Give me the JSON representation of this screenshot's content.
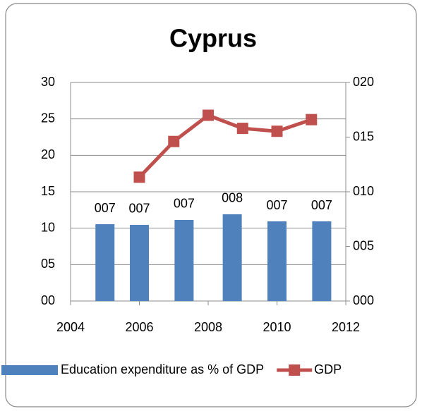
{
  "chart_data": {
    "type": "combo",
    "title": "Cyprus",
    "xlim": [
      2004,
      2012
    ],
    "xticks": [
      2004,
      2006,
      2008,
      2010,
      2012
    ],
    "ylim": [
      0,
      30
    ],
    "yticks": [
      {
        "value": 0,
        "label": "00"
      },
      {
        "value": 5,
        "label": "05"
      },
      10,
      15,
      20,
      25,
      30
    ],
    "y2lim": [
      0,
      20
    ],
    "y2ticks": [
      {
        "value": 0,
        "label": "000"
      },
      {
        "value": 5,
        "label": "005"
      },
      {
        "value": 10,
        "label": "010"
      },
      {
        "value": 15,
        "label": "015"
      },
      {
        "value": 20,
        "label": "020"
      }
    ],
    "grid": true,
    "legend": "bottom",
    "series": [
      {
        "name": "Education expenditure as % of GDP",
        "type": "bar",
        "axis": "y2",
        "color": "#4f81bd",
        "x": [
          2005,
          2006,
          2007.3,
          2008.7,
          2010,
          2011.3
        ],
        "values": [
          7.03,
          6.97,
          7.42,
          7.94,
          7.29,
          7.29
        ],
        "value_labels": [
          "007",
          "007",
          "007",
          "008",
          "007",
          "007"
        ]
      },
      {
        "name": "GDP",
        "type": "line",
        "axis": "y",
        "color": "#c0504d",
        "x": [
          2006,
          2007,
          2008,
          2009,
          2010,
          2011
        ],
        "values": [
          17.0,
          21.9,
          25.5,
          23.7,
          23.3,
          24.9
        ]
      }
    ]
  }
}
